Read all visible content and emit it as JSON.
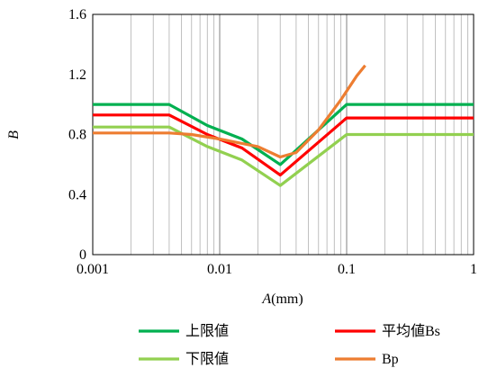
{
  "chart_data": {
    "type": "line",
    "x_scale": "log",
    "xlim": [
      0.001,
      1
    ],
    "ylim": [
      0,
      1.6
    ],
    "x_ticks": [
      {
        "value": 0.001,
        "label": "0.001"
      },
      {
        "value": 0.01,
        "label": "0.01"
      },
      {
        "value": 0.1,
        "label": "0.1"
      },
      {
        "value": 1,
        "label": "1"
      }
    ],
    "y_ticks": [
      {
        "value": 0,
        "label": "0"
      },
      {
        "value": 0.4,
        "label": "0.4"
      },
      {
        "value": 0.8,
        "label": "0.8"
      },
      {
        "value": 1.2,
        "label": "1.2"
      },
      {
        "value": 1.6,
        "label": "1.6"
      }
    ],
    "xlabel_italic": "A",
    "xlabel_unit": "(mm)",
    "ylabel": "B",
    "grid": "vertical minor + major",
    "legend_position": "bottom",
    "series": [
      {
        "name": "上限値",
        "color": "#00b050",
        "points": [
          [
            0.001,
            1.0
          ],
          [
            0.004,
            1.0
          ],
          [
            0.008,
            0.86
          ],
          [
            0.015,
            0.77
          ],
          [
            0.03,
            0.6
          ],
          [
            0.1,
            1.0
          ],
          [
            1,
            1.0
          ]
        ]
      },
      {
        "name": "平均値Bs",
        "color": "#ff0000",
        "points": [
          [
            0.001,
            0.93
          ],
          [
            0.004,
            0.93
          ],
          [
            0.008,
            0.8
          ],
          [
            0.015,
            0.71
          ],
          [
            0.03,
            0.53
          ],
          [
            0.1,
            0.91
          ],
          [
            1,
            0.91
          ]
        ]
      },
      {
        "name": "下限値",
        "color": "#92d050",
        "points": [
          [
            0.001,
            0.85
          ],
          [
            0.004,
            0.85
          ],
          [
            0.008,
            0.72
          ],
          [
            0.015,
            0.63
          ],
          [
            0.03,
            0.46
          ],
          [
            0.1,
            0.8
          ],
          [
            1,
            0.8
          ]
        ]
      },
      {
        "name": "Bp",
        "color": "#ed7d31",
        "points": [
          [
            0.001,
            0.81
          ],
          [
            0.004,
            0.81
          ],
          [
            0.006,
            0.8
          ],
          [
            0.01,
            0.77
          ],
          [
            0.02,
            0.72
          ],
          [
            0.03,
            0.65
          ],
          [
            0.04,
            0.68
          ],
          [
            0.06,
            0.83
          ],
          [
            0.09,
            1.03
          ],
          [
            0.12,
            1.19
          ],
          [
            0.14,
            1.26
          ]
        ]
      }
    ]
  }
}
